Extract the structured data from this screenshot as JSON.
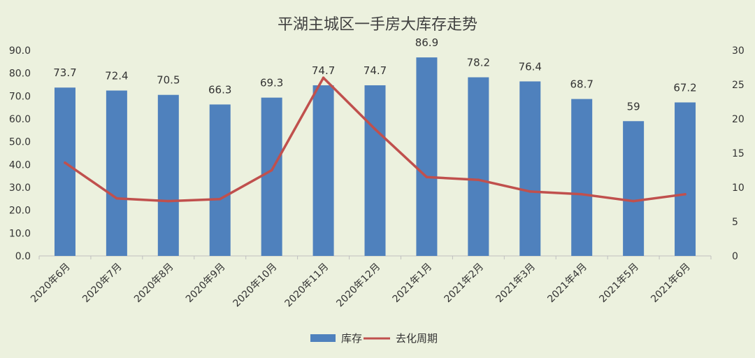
{
  "chart_data": {
    "type": "bar",
    "title": "平湖主城区一手房大库存走势",
    "categories": [
      "2020年6月",
      "2020年7月",
      "2020年8月",
      "2020年9月",
      "2020年10月",
      "2020年11月",
      "2020年12月",
      "2021年1月",
      "2021年2月",
      "2021年3月",
      "2021年4月",
      "2021年5月",
      "2021年6月"
    ],
    "series": [
      {
        "name": "库存",
        "type": "bar",
        "axis": "left",
        "color": "#4f81bd",
        "values": [
          73.7,
          72.4,
          70.5,
          66.3,
          69.3,
          74.7,
          74.7,
          86.9,
          78.2,
          76.4,
          68.7,
          59,
          67.2
        ],
        "labels": [
          "73.7",
          "72.4",
          "70.5",
          "66.3",
          "69.3",
          "74.7",
          "74.7",
          "86.9",
          "78.2",
          "76.4",
          "68.7",
          "59",
          "67.2"
        ]
      },
      {
        "name": "去化周期",
        "type": "line",
        "axis": "right",
        "color": "#c0504d",
        "values": [
          13.6,
          8.4,
          8.0,
          8.3,
          12.5,
          26.0,
          18.5,
          11.5,
          11.1,
          9.4,
          9.0,
          8.0,
          9.0
        ]
      }
    ],
    "y_left": {
      "min": 0,
      "max": 90,
      "step": 10,
      "decimals": 1
    },
    "y_right": {
      "min": 0,
      "max": 30,
      "step": 5,
      "decimals": 0
    },
    "grid": false,
    "legend": "bottom-center",
    "colors": {
      "background": "#ecf1de",
      "bar": "#4f81bd",
      "line": "#c0504d",
      "axis": "#bfbfbf"
    }
  }
}
